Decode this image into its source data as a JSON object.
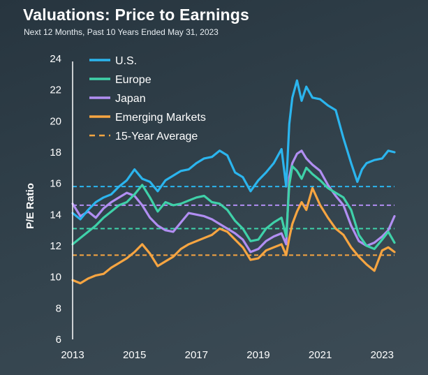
{
  "header": {
    "title": "Valuations: Price to Earnings",
    "subtitle": "Next 12 Months, Past 10 Years Ended May 31, 2023"
  },
  "chart_data": {
    "type": "line",
    "title": "Valuations: Price to Earnings",
    "subtitle": "Next 12 Months, Past 10 Years Ended May 31, 2023",
    "xlabel": "",
    "ylabel": "P/E Ratio",
    "xlim": [
      2013,
      2023.4
    ],
    "ylim": [
      6,
      24
    ],
    "x_ticks": [
      "2013",
      "2015",
      "2017",
      "2019",
      "2021",
      "2023"
    ],
    "y_ticks": [
      "6",
      "8",
      "10",
      "12",
      "14",
      "16",
      "18",
      "20",
      "22",
      "24"
    ],
    "legend_position": "top-left",
    "grid": false,
    "series": [
      {
        "name": "U.S.",
        "color": "#2bb5ee",
        "x": [
          2013.0,
          2013.25,
          2013.5,
          2013.75,
          2014.0,
          2014.25,
          2014.5,
          2014.75,
          2015.0,
          2015.25,
          2015.5,
          2015.75,
          2016.0,
          2016.25,
          2016.5,
          2016.75,
          2017.0,
          2017.25,
          2017.5,
          2017.75,
          2018.0,
          2018.25,
          2018.5,
          2018.75,
          2019.0,
          2019.25,
          2019.5,
          2019.75,
          2019.9,
          2020.0,
          2020.1,
          2020.25,
          2020.4,
          2020.55,
          2020.75,
          2021.0,
          2021.25,
          2021.5,
          2021.75,
          2022.0,
          2022.2,
          2022.35,
          2022.5,
          2022.75,
          2023.0,
          2023.2,
          2023.4
        ],
        "values": [
          14.1,
          13.7,
          14.3,
          14.8,
          15.1,
          15.3,
          15.8,
          16.2,
          16.9,
          16.3,
          16.1,
          15.5,
          16.2,
          16.5,
          16.8,
          16.9,
          17.3,
          17.6,
          17.7,
          18.1,
          17.8,
          16.7,
          16.4,
          15.5,
          16.2,
          16.7,
          17.3,
          18.2,
          15.8,
          19.8,
          21.5,
          22.6,
          21.3,
          22.2,
          21.5,
          21.4,
          21.0,
          20.7,
          18.9,
          17.3,
          16.1,
          16.9,
          17.3,
          17.5,
          17.6,
          18.1,
          18.0
        ]
      },
      {
        "name": "Europe",
        "color": "#3fd1a9",
        "x": [
          2013.0,
          2013.25,
          2013.5,
          2013.75,
          2014.0,
          2014.25,
          2014.5,
          2014.75,
          2015.0,
          2015.25,
          2015.5,
          2015.75,
          2016.0,
          2016.25,
          2016.5,
          2016.75,
          2017.0,
          2017.25,
          2017.5,
          2017.75,
          2018.0,
          2018.25,
          2018.5,
          2018.75,
          2019.0,
          2019.25,
          2019.5,
          2019.75,
          2019.9,
          2020.0,
          2020.1,
          2020.25,
          2020.4,
          2020.55,
          2020.75,
          2021.0,
          2021.25,
          2021.5,
          2021.75,
          2022.0,
          2022.25,
          2022.5,
          2022.75,
          2023.0,
          2023.2,
          2023.4
        ],
        "values": [
          12.1,
          12.5,
          12.9,
          13.3,
          13.8,
          14.2,
          14.6,
          14.8,
          15.3,
          15.9,
          15.1,
          14.2,
          14.8,
          14.6,
          14.7,
          14.9,
          15.1,
          15.2,
          14.8,
          14.7,
          14.3,
          13.6,
          13.1,
          12.3,
          12.4,
          13.1,
          13.5,
          13.8,
          12.6,
          15.9,
          17.1,
          16.8,
          16.3,
          17.0,
          16.6,
          16.2,
          15.7,
          15.4,
          15.1,
          14.3,
          12.7,
          12.0,
          11.8,
          12.4,
          12.9,
          12.2
        ]
      },
      {
        "name": "Japan",
        "color": "#b18ef2",
        "x": [
          2013.0,
          2013.25,
          2013.5,
          2013.75,
          2014.0,
          2014.25,
          2014.5,
          2014.75,
          2015.0,
          2015.25,
          2015.5,
          2015.75,
          2016.0,
          2016.25,
          2016.5,
          2016.75,
          2017.0,
          2017.25,
          2017.5,
          2017.75,
          2018.0,
          2018.25,
          2018.5,
          2018.75,
          2019.0,
          2019.25,
          2019.5,
          2019.75,
          2019.9,
          2020.0,
          2020.1,
          2020.25,
          2020.4,
          2020.55,
          2020.75,
          2021.0,
          2021.25,
          2021.5,
          2021.75,
          2022.0,
          2022.25,
          2022.5,
          2022.75,
          2023.0,
          2023.2,
          2023.4
        ],
        "values": [
          14.7,
          13.9,
          14.2,
          13.8,
          14.4,
          14.8,
          15.1,
          15.4,
          15.2,
          14.6,
          13.8,
          13.3,
          13.0,
          12.9,
          13.5,
          14.1,
          14.0,
          13.9,
          13.7,
          13.4,
          13.1,
          12.8,
          12.4,
          11.6,
          11.8,
          12.3,
          12.6,
          12.8,
          12.1,
          16.4,
          17.3,
          17.9,
          18.1,
          17.6,
          17.2,
          16.8,
          15.9,
          15.2,
          14.6,
          13.3,
          12.3,
          12.0,
          12.2,
          12.6,
          13.0,
          13.9
        ]
      },
      {
        "name": "Emerging Markets",
        "color": "#f7a541",
        "x": [
          2013.0,
          2013.25,
          2013.5,
          2013.75,
          2014.0,
          2014.25,
          2014.5,
          2014.75,
          2015.0,
          2015.25,
          2015.5,
          2015.75,
          2016.0,
          2016.25,
          2016.5,
          2016.75,
          2017.0,
          2017.25,
          2017.5,
          2017.75,
          2018.0,
          2018.25,
          2018.5,
          2018.75,
          2019.0,
          2019.25,
          2019.5,
          2019.75,
          2019.9,
          2020.0,
          2020.1,
          2020.25,
          2020.4,
          2020.55,
          2020.75,
          2021.0,
          2021.25,
          2021.5,
          2021.75,
          2022.0,
          2022.25,
          2022.5,
          2022.75,
          2023.0,
          2023.2,
          2023.4
        ],
        "values": [
          9.8,
          9.6,
          9.9,
          10.1,
          10.2,
          10.6,
          10.9,
          11.2,
          11.6,
          12.1,
          11.5,
          10.7,
          11.0,
          11.3,
          11.8,
          12.1,
          12.3,
          12.5,
          12.7,
          13.1,
          12.9,
          12.4,
          11.9,
          11.1,
          11.2,
          11.7,
          11.9,
          12.1,
          11.4,
          12.5,
          13.4,
          14.2,
          14.8,
          14.3,
          15.7,
          14.6,
          13.8,
          13.1,
          12.7,
          11.9,
          11.3,
          10.8,
          10.4,
          11.7,
          11.9,
          11.6
        ]
      }
    ],
    "averages": [
      {
        "name": "15-Year Average",
        "series": "U.S.",
        "value": 15.8,
        "color": "#2bb5ee"
      },
      {
        "name": "15-Year Average",
        "series": "Europe",
        "value": 13.1,
        "color": "#3fd1a9"
      },
      {
        "name": "15-Year Average",
        "series": "Japan",
        "value": 14.6,
        "color": "#b18ef2"
      },
      {
        "name": "15-Year Average",
        "series": "Emerging Markets",
        "value": 11.4,
        "color": "#f7a541"
      }
    ],
    "legend": [
      {
        "label": "U.S.",
        "color": "#2bb5ee",
        "style": "solid"
      },
      {
        "label": "Europe",
        "color": "#3fd1a9",
        "style": "solid"
      },
      {
        "label": "Japan",
        "color": "#b18ef2",
        "style": "solid"
      },
      {
        "label": "Emerging Markets",
        "color": "#f7a541",
        "style": "solid"
      },
      {
        "label": "15-Year Average",
        "color": "#f7a541",
        "style": "dashed"
      }
    ]
  }
}
